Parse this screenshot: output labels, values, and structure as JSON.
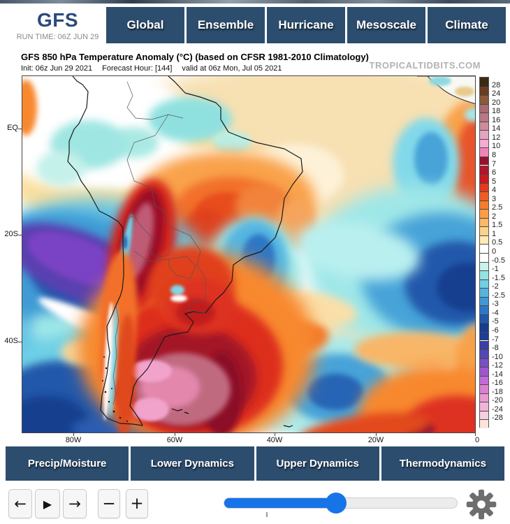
{
  "header": {
    "model_label": "GFS",
    "run_time": "RUN TIME: 06Z JUN 29"
  },
  "nav_tabs": [
    "Global",
    "Ensemble",
    "Hurricane",
    "Mesoscale",
    "Climate"
  ],
  "map": {
    "title": "GFS 850 hPa Temperature Anomaly (°C) (based on CFSR 1981-2010 Climatology)",
    "init": "Init: 06z Jun 29 2021",
    "forecast_hour": "Forecast Hour: [144]",
    "valid": "valid at 06z Mon, Jul 05 2021",
    "watermark": "TROPICALTIDBITS.COM",
    "y_axis_labels": [
      "EQ",
      "20S",
      "40S"
    ],
    "x_axis_labels": [
      "80W",
      "60W",
      "40W",
      "20W",
      "0"
    ]
  },
  "colorbar": {
    "labels": [
      "28",
      "24",
      "20",
      "18",
      "16",
      "14",
      "12",
      "10",
      "8",
      "7",
      "6",
      "5",
      "4",
      "3",
      "2.5",
      "2",
      "1.5",
      "1",
      "0.5",
      "0",
      "-0.5",
      "-1",
      "-1.5",
      "-2",
      "-2.5",
      "-3",
      "-4",
      "-5",
      "-6",
      "-7",
      "-8",
      "-10",
      "-12",
      "-14",
      "-16",
      "-18",
      "-20",
      "-24",
      "-28"
    ],
    "segment_colors": [
      "#3d2a12",
      "#6b3d1d",
      "#8a5a3a",
      "#a96b72",
      "#b97884",
      "#cd8c9c",
      "#e2a4bf",
      "#f5abd3",
      "#ee85b9",
      "#97112b",
      "#b2142e",
      "#ca1a20",
      "#e23a1e",
      "#f05c23",
      "#f87d2b",
      "#fb9c47",
      "#fcb768",
      "#fdd28c",
      "#feeab4",
      "#ffffff",
      "#ffffff",
      "#c9f2e9",
      "#93e3e0",
      "#6fd0e6",
      "#55b5e0",
      "#3f99d6",
      "#2e77c4",
      "#2058ab",
      "#153f8e",
      "#1e3d94",
      "#3a3fa5",
      "#5247b5",
      "#7a4fc4",
      "#9e56cf",
      "#c36ada",
      "#dc7fd0",
      "#e99bd0",
      "#f2b3d9",
      "#f8cfe0",
      "#fce4db"
    ]
  },
  "bottom_tabs": [
    "Precip/Moisture",
    "Lower Dynamics",
    "Upper Dynamics",
    "Thermodynamics"
  ],
  "controls": {
    "icons": {
      "step_back": "←",
      "play": "▶",
      "step_forward": "→",
      "zoom_out": "−",
      "zoom_in": "+",
      "settings": "gear"
    },
    "slider_fill_percent": 48,
    "slider_tick_percent": 18
  },
  "colors": {
    "tab_blue": "#2c4d6e",
    "slider_blue": "#1774e8",
    "title_navy": "#2b4a7d",
    "gear_gray": "#6e6e6e"
  }
}
